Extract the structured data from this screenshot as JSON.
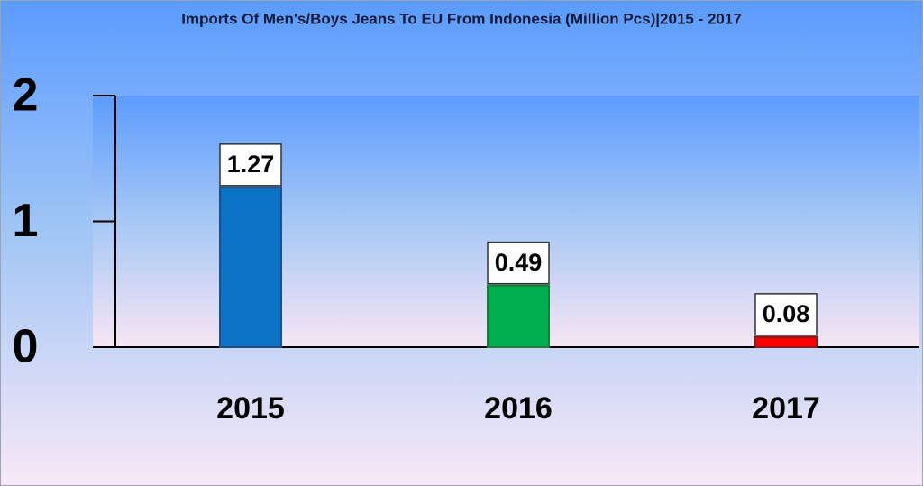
{
  "chart_data": {
    "type": "bar",
    "title": "Imports Of Men's/Boys Jeans To EU From Indonesia (Million Pcs)|2015 - 2017",
    "categories": [
      "2015",
      "2016",
      "2017"
    ],
    "values": [
      1.27,
      0.49,
      0.08
    ],
    "colors": [
      "#0b72c6",
      "#00b050",
      "#ff0000"
    ],
    "ylim": [
      0,
      2
    ],
    "yticks": [
      0,
      1,
      2
    ]
  }
}
